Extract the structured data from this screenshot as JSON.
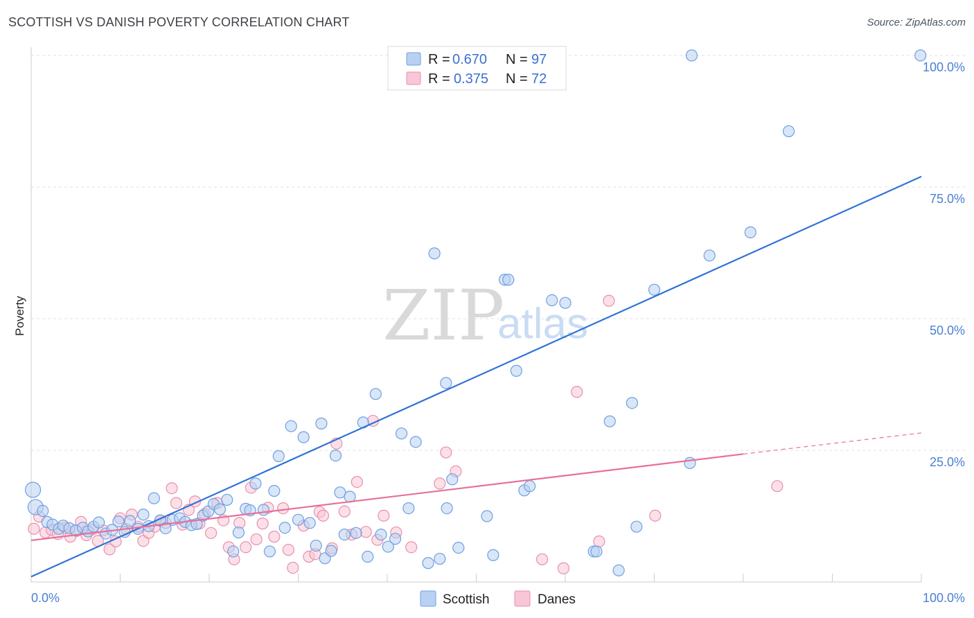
{
  "header": {
    "title": "SCOTTISH VS DANISH POVERTY CORRELATION CHART",
    "source": "Source: ZipAtlas.com"
  },
  "watermark": {
    "zip": "ZIP",
    "atlas": "atlas"
  },
  "legend": {
    "r_label": "R =",
    "n_label": "N =",
    "items": [
      {
        "name": "Scottish",
        "r": "0.670",
        "n": "97",
        "fill": "#b8d1f3",
        "stroke": "#6f9fe0"
      },
      {
        "name": "Danes",
        "r": "0.375",
        "n": "72",
        "fill": "#f8c6d6",
        "stroke": "#ea8fab"
      }
    ]
  },
  "chart_data": {
    "type": "scatter",
    "title": "SCOTTISH VS DANISH POVERTY CORRELATION CHART",
    "xlabel": "",
    "ylabel": "Poverty",
    "xlim": [
      0,
      100
    ],
    "ylim": [
      0,
      100
    ],
    "x_tick_labels": [
      "0.0%",
      "100.0%"
    ],
    "y_ticks": [
      25,
      50,
      75,
      100
    ],
    "y_tick_labels": [
      "25.0%",
      "50.0%",
      "75.0%",
      "100.0%"
    ],
    "grid": true,
    "legend_position": "top-center",
    "colors": {
      "scottish": "#4f86d8",
      "danes": "#e86f97",
      "grid": "#e2e2e2"
    },
    "series": [
      {
        "name": "Scottish",
        "r": 0.67,
        "n": 97,
        "trend": {
          "x": [
            0,
            100
          ],
          "y": [
            1,
            77
          ]
        },
        "points": [
          [
            0.2,
            17.5
          ],
          [
            0.5,
            14.2
          ],
          [
            1.3,
            13.5
          ],
          [
            1.8,
            11.4
          ],
          [
            2.4,
            10.9
          ],
          [
            3.1,
            10.1
          ],
          [
            3.6,
            10.7
          ],
          [
            4.3,
            10.2
          ],
          [
            5.0,
            9.8
          ],
          [
            5.8,
            10.3
          ],
          [
            6.4,
            9.6
          ],
          [
            7.0,
            10.5
          ],
          [
            7.6,
            11.3
          ],
          [
            8.4,
            9.2
          ],
          [
            9.1,
            9.9
          ],
          [
            9.8,
            11.5
          ],
          [
            10.5,
            9.5
          ],
          [
            11.1,
            11.6
          ],
          [
            12.0,
            10.1
          ],
          [
            12.6,
            12.8
          ],
          [
            13.2,
            10.6
          ],
          [
            13.8,
            15.9
          ],
          [
            14.5,
            11.7
          ],
          [
            15.1,
            10.2
          ],
          [
            15.9,
            11.8
          ],
          [
            16.7,
            12.1
          ],
          [
            17.3,
            11.4
          ],
          [
            18.0,
            10.8
          ],
          [
            18.6,
            11.0
          ],
          [
            19.3,
            12.6
          ],
          [
            19.9,
            13.4
          ],
          [
            20.5,
            14.8
          ],
          [
            21.2,
            13.8
          ],
          [
            22.0,
            15.6
          ],
          [
            22.7,
            5.8
          ],
          [
            23.3,
            9.4
          ],
          [
            24.1,
            13.9
          ],
          [
            24.6,
            13.6
          ],
          [
            25.2,
            18.7
          ],
          [
            26.1,
            13.7
          ],
          [
            26.8,
            5.8
          ],
          [
            27.3,
            17.3
          ],
          [
            27.8,
            23.9
          ],
          [
            28.5,
            10.3
          ],
          [
            29.2,
            29.6
          ],
          [
            30.0,
            11.8
          ],
          [
            30.6,
            27.5
          ],
          [
            31.3,
            11.2
          ],
          [
            32.0,
            6.9
          ],
          [
            32.6,
            30.1
          ],
          [
            33.0,
            4.5
          ],
          [
            33.7,
            5.9
          ],
          [
            34.2,
            24.0
          ],
          [
            34.7,
            17.0
          ],
          [
            35.2,
            9.0
          ],
          [
            35.8,
            16.2
          ],
          [
            36.5,
            9.3
          ],
          [
            37.3,
            30.3
          ],
          [
            37.8,
            4.8
          ],
          [
            38.7,
            35.7
          ],
          [
            39.3,
            9.0
          ],
          [
            40.1,
            6.7
          ],
          [
            40.9,
            8.2
          ],
          [
            41.6,
            28.2
          ],
          [
            42.4,
            14.0
          ],
          [
            43.2,
            26.6
          ],
          [
            44.6,
            3.6
          ],
          [
            45.3,
            62.4
          ],
          [
            45.9,
            4.4
          ],
          [
            46.6,
            37.8
          ],
          [
            46.7,
            14.0
          ],
          [
            47.3,
            19.5
          ],
          [
            48.0,
            6.5
          ],
          [
            51.2,
            12.5
          ],
          [
            51.9,
            5.1
          ],
          [
            53.2,
            57.4
          ],
          [
            53.6,
            57.4
          ],
          [
            54.5,
            40.1
          ],
          [
            55.4,
            17.4
          ],
          [
            56.0,
            18.2
          ],
          [
            58.5,
            53.5
          ],
          [
            60.0,
            53.0
          ],
          [
            63.2,
            5.8
          ],
          [
            63.5,
            5.8
          ],
          [
            65.0,
            30.5
          ],
          [
            66.0,
            2.2
          ],
          [
            67.5,
            34.0
          ],
          [
            68.0,
            10.5
          ],
          [
            70.0,
            55.5
          ],
          [
            74.0,
            22.6
          ],
          [
            76.2,
            62.0
          ],
          [
            80.8,
            66.4
          ],
          [
            85.1,
            85.6
          ],
          [
            99.9,
            100.0
          ],
          [
            74.2,
            100.0
          ],
          [
            53.6,
            100.0
          ],
          [
            46.8,
            100.0
          ]
        ]
      },
      {
        "name": "Danes",
        "r": 0.375,
        "n": 72,
        "trend": {
          "x": [
            0,
            80
          ],
          "y": [
            7.9,
            24.3
          ]
        },
        "trend_extension": {
          "x": [
            80,
            100
          ],
          "y": [
            24.3,
            28.3
          ]
        },
        "points": [
          [
            0.3,
            10.1
          ],
          [
            0.9,
            12.4
          ],
          [
            1.6,
            9.4
          ],
          [
            2.3,
            9.9
          ],
          [
            3.0,
            9.1
          ],
          [
            3.8,
            10.3
          ],
          [
            4.4,
            8.6
          ],
          [
            5.1,
            9.7
          ],
          [
            5.6,
            11.4
          ],
          [
            6.2,
            8.9
          ],
          [
            6.9,
            10.0
          ],
          [
            7.5,
            7.8
          ],
          [
            8.1,
            9.8
          ],
          [
            8.8,
            6.2
          ],
          [
            9.5,
            7.7
          ],
          [
            10.0,
            12.1
          ],
          [
            10.7,
            10.0
          ],
          [
            11.3,
            12.8
          ],
          [
            12.0,
            10.5
          ],
          [
            12.6,
            7.8
          ],
          [
            13.2,
            9.3
          ],
          [
            13.9,
            10.5
          ],
          [
            14.5,
            11.6
          ],
          [
            15.1,
            11.2
          ],
          [
            15.8,
            17.8
          ],
          [
            16.3,
            15.0
          ],
          [
            17.0,
            10.9
          ],
          [
            17.7,
            13.7
          ],
          [
            18.4,
            15.3
          ],
          [
            18.9,
            11.1
          ],
          [
            19.5,
            12.9
          ],
          [
            20.2,
            9.3
          ],
          [
            20.9,
            15.0
          ],
          [
            21.6,
            11.7
          ],
          [
            22.2,
            6.6
          ],
          [
            22.8,
            4.3
          ],
          [
            23.4,
            11.2
          ],
          [
            24.1,
            6.6
          ],
          [
            24.7,
            17.9
          ],
          [
            25.3,
            8.1
          ],
          [
            26.0,
            11.1
          ],
          [
            26.6,
            14.1
          ],
          [
            27.3,
            8.6
          ],
          [
            28.3,
            14.0
          ],
          [
            28.9,
            6.1
          ],
          [
            29.4,
            2.7
          ],
          [
            30.6,
            10.7
          ],
          [
            31.2,
            4.8
          ],
          [
            31.9,
            5.3
          ],
          [
            32.4,
            13.3
          ],
          [
            32.8,
            12.6
          ],
          [
            33.8,
            6.4
          ],
          [
            34.3,
            26.3
          ],
          [
            35.2,
            13.4
          ],
          [
            36.0,
            9.0
          ],
          [
            36.6,
            19.0
          ],
          [
            37.6,
            9.5
          ],
          [
            38.4,
            30.6
          ],
          [
            38.9,
            8.0
          ],
          [
            39.6,
            12.6
          ],
          [
            41.0,
            9.4
          ],
          [
            42.7,
            6.6
          ],
          [
            45.9,
            18.7
          ],
          [
            46.6,
            24.6
          ],
          [
            47.7,
            21.0
          ],
          [
            57.4,
            4.3
          ],
          [
            59.8,
            2.6
          ],
          [
            61.3,
            36.1
          ],
          [
            63.8,
            7.7
          ],
          [
            64.9,
            53.4
          ],
          [
            70.1,
            12.6
          ],
          [
            83.8,
            18.2
          ]
        ]
      }
    ]
  }
}
